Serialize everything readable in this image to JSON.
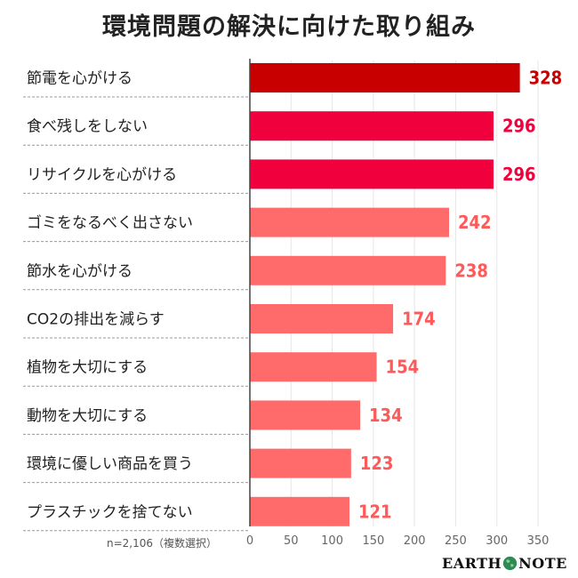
{
  "header": {
    "title": "環境問題の解決に向けた取り組み"
  },
  "footer": {
    "note": "n=2,106（複数選択）",
    "brand_left": "EARTH",
    "brand_right": "NOTE"
  },
  "colors": {
    "top_bar": "#c80000",
    "second_bars": "#f0003c",
    "other_bars": "#ff6b6b",
    "top_value": "#c80000",
    "second_values": "#f0003c",
    "other_values": "#ff5a5a"
  },
  "chart_data": {
    "type": "bar",
    "orientation": "horizontal",
    "title": "環境問題の解決に向けた取り組み",
    "categories": [
      "節電を心がける",
      "食べ残しをしない",
      "リサイクルを心がける",
      "ゴミをなるべく出さない",
      "節水を心がける",
      "CO2の排出を減らす",
      "植物を大切にする",
      "動物を大切にする",
      "環境に優しい商品を買う",
      "プラスチックを捨てない"
    ],
    "values": [
      328,
      296,
      296,
      242,
      238,
      174,
      154,
      134,
      123,
      121
    ],
    "xlim": [
      0,
      350
    ],
    "xticks": [
      0,
      50,
      100,
      150,
      200,
      250,
      300,
      350
    ],
    "grid": "vertical"
  }
}
